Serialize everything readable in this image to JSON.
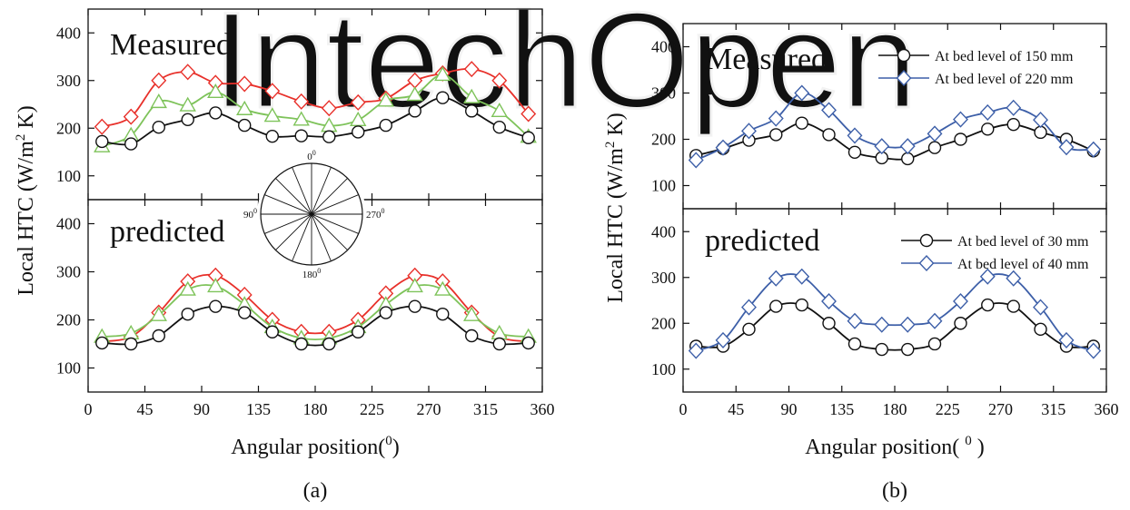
{
  "colors": {
    "black_series": "#111111",
    "red_series": "#e8302a",
    "green_series": "#7ec35a",
    "blue_series": "#3d5fa8",
    "watermark": "#f2f2f2"
  },
  "watermark_text": "IntechOpen",
  "chart_data": [
    {
      "type": "line",
      "panel": "a-top",
      "caption": "(a)",
      "label": "Measured",
      "xlabel": "Angular position(0)",
      "ylabel": "Local HTC (W/m2 K)",
      "xlim": [
        0,
        360
      ],
      "ylim": [
        50,
        450
      ],
      "xticks": [
        0,
        45,
        90,
        135,
        180,
        225,
        270,
        315,
        360
      ],
      "yticks": [
        100,
        200,
        300,
        400
      ],
      "show_xticklabels": false,
      "x": [
        11,
        34,
        56,
        79,
        101,
        124,
        146,
        169,
        191,
        214,
        236,
        259,
        281,
        304,
        326,
        349
      ],
      "series": [
        {
          "color": "#e8302a",
          "marker": "diamond",
          "values": [
            203,
            224,
            300,
            318,
            295,
            293,
            278,
            256,
            242,
            254,
            262,
            300,
            315,
            324,
            300,
            230
          ]
        },
        {
          "color": "#7ec35a",
          "marker": "triangle",
          "values": [
            162,
            185,
            255,
            248,
            276,
            240,
            226,
            218,
            205,
            217,
            258,
            270,
            312,
            265,
            236,
            182
          ]
        },
        {
          "color": "#111111",
          "marker": "circle",
          "values": [
            172,
            167,
            202,
            218,
            232,
            206,
            183,
            184,
            182,
            192,
            206,
            236,
            264,
            236,
            202,
            180
          ]
        }
      ]
    },
    {
      "type": "line",
      "panel": "a-bottom",
      "label": "predicted",
      "xlim": [
        0,
        360
      ],
      "ylim": [
        50,
        450
      ],
      "xticks": [
        0,
        45,
        90,
        135,
        180,
        225,
        270,
        315,
        360
      ],
      "yticks": [
        100,
        200,
        300,
        400
      ],
      "show_xticklabels": true,
      "x": [
        11,
        34,
        56,
        79,
        101,
        124,
        146,
        169,
        191,
        214,
        236,
        259,
        281,
        304,
        326,
        349
      ],
      "series": [
        {
          "color": "#e8302a",
          "marker": "diamond",
          "values": [
            155,
            165,
            215,
            280,
            292,
            252,
            200,
            175,
            175,
            200,
            255,
            292,
            280,
            215,
            165,
            155
          ]
        },
        {
          "color": "#7ec35a",
          "marker": "triangle",
          "values": [
            165,
            172,
            210,
            263,
            270,
            232,
            185,
            162,
            162,
            185,
            232,
            270,
            263,
            210,
            172,
            165
          ]
        },
        {
          "color": "#111111",
          "marker": "circle",
          "values": [
            152,
            150,
            167,
            212,
            228,
            215,
            175,
            150,
            150,
            175,
            215,
            228,
            212,
            167,
            150,
            152
          ]
        }
      ]
    },
    {
      "type": "line",
      "panel": "b-top",
      "caption": "(b)",
      "label": "Measured",
      "xlabel": "Angular position( 0 )",
      "ylabel": "Local HTC (W/m2 K)",
      "xlim": [
        0,
        360
      ],
      "ylim": [
        50,
        450
      ],
      "xticks": [
        0,
        45,
        90,
        135,
        180,
        225,
        270,
        315,
        360
      ],
      "yticks": [
        100,
        200,
        300,
        400
      ],
      "show_xticklabels": false,
      "legend": [
        "At bed level of 150 mm",
        "At bed level of 220 mm"
      ],
      "x": [
        11,
        34,
        56,
        79,
        101,
        124,
        146,
        169,
        191,
        214,
        236,
        259,
        281,
        304,
        326,
        349
      ],
      "series": [
        {
          "name": "At bed level of 150 mm",
          "color": "#111111",
          "marker": "circle",
          "values": [
            165,
            180,
            198,
            210,
            235,
            210,
            172,
            160,
            158,
            182,
            200,
            222,
            232,
            215,
            200,
            175
          ]
        },
        {
          "name": "At bed level of 220 mm",
          "color": "#3d5fa8",
          "marker": "diamond",
          "values": [
            155,
            182,
            218,
            245,
            300,
            263,
            208,
            185,
            185,
            212,
            243,
            258,
            268,
            242,
            183,
            178
          ]
        }
      ]
    },
    {
      "type": "line",
      "panel": "b-bottom",
      "label": "predicted",
      "xlim": [
        0,
        360
      ],
      "ylim": [
        50,
        450
      ],
      "xticks": [
        0,
        45,
        90,
        135,
        180,
        225,
        270,
        315,
        360
      ],
      "yticks": [
        100,
        200,
        300,
        400
      ],
      "show_xticklabels": true,
      "legend": [
        "At bed level of 30 mm",
        "At bed level of 40 mm"
      ],
      "x": [
        11,
        34,
        56,
        79,
        101,
        124,
        146,
        169,
        191,
        214,
        236,
        259,
        281,
        304,
        326,
        349
      ],
      "series": [
        {
          "name": "At bed level of 30 mm",
          "color": "#111111",
          "marker": "circle",
          "values": [
            150,
            150,
            187,
            237,
            240,
            200,
            155,
            143,
            143,
            155,
            200,
            240,
            237,
            187,
            150,
            150
          ]
        },
        {
          "name": "At bed level of 40 mm",
          "color": "#3d5fa8",
          "marker": "diamond",
          "values": [
            140,
            163,
            235,
            298,
            302,
            248,
            205,
            197,
            197,
            205,
            248,
            302,
            298,
            235,
            163,
            140
          ]
        }
      ]
    }
  ],
  "inset": {
    "labels": [
      "0",
      "90",
      "270",
      "180"
    ]
  }
}
